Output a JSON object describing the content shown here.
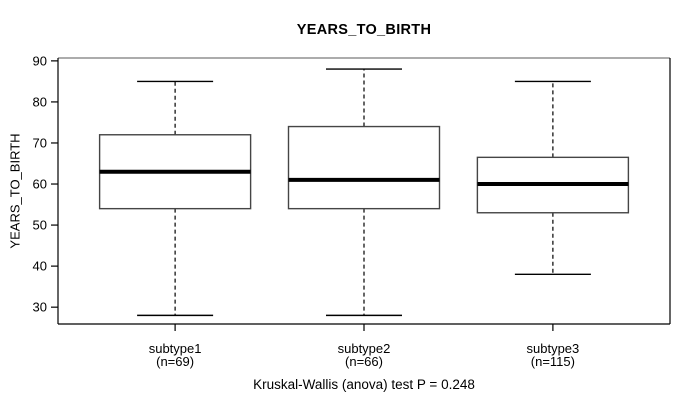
{
  "chart_data": {
    "type": "boxplot",
    "title": "YEARS_TO_BIRTH",
    "ylabel": "YEARS_TO_BIRTH",
    "xlabel": "",
    "annotation": "Kruskal-Wallis (anova) test P = 0.248",
    "p_value": 0.248,
    "y_ticks": [
      30,
      40,
      50,
      60,
      70,
      80,
      90
    ],
    "ylim": [
      25.9,
      90.7
    ],
    "grid": false,
    "legend": "none",
    "groups": [
      {
        "label": "subtype1",
        "sublabel": "(n=69)",
        "n": 69,
        "whisker_low": 28,
        "q1": 54,
        "median": 63,
        "q3": 72,
        "whisker_high": 85
      },
      {
        "label": "subtype2",
        "sublabel": "(n=66)",
        "n": 66,
        "whisker_low": 28,
        "q1": 54,
        "median": 61,
        "q3": 74,
        "whisker_high": 88
      },
      {
        "label": "subtype3",
        "sublabel": "(n=115)",
        "n": 115,
        "whisker_low": 38,
        "q1": 53,
        "median": 60,
        "q3": 66.5,
        "whisker_high": 85
      }
    ],
    "colors": {
      "background": "#ffffff",
      "box_fill": "#ffffff",
      "box_border": "#454545",
      "median": "#000000",
      "whisker": "#000000",
      "frame": "#000000",
      "frame_top": "#919191",
      "text": "#000000"
    }
  }
}
